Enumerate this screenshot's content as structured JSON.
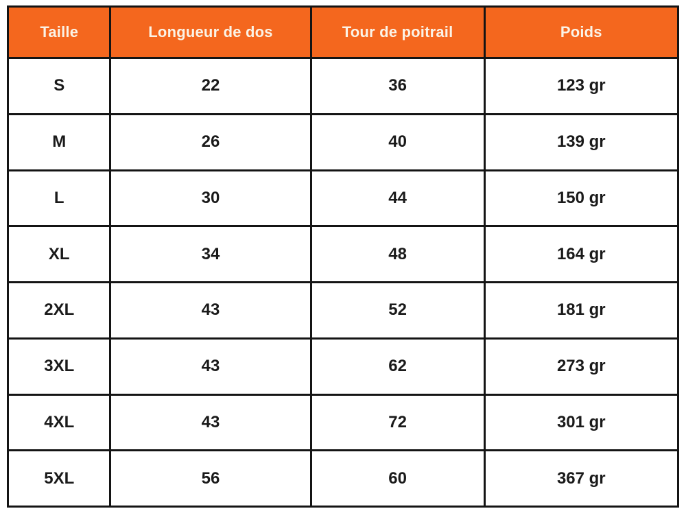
{
  "chart_data": {
    "type": "table",
    "title": "",
    "columns": [
      "Taille",
      "Longueur de dos",
      "Tour de poitrail",
      "Poids"
    ],
    "rows": [
      [
        "S",
        "22",
        "36",
        "123 gr"
      ],
      [
        "M",
        "26",
        "40",
        "139 gr"
      ],
      [
        "L",
        "30",
        "44",
        "150 gr"
      ],
      [
        "XL",
        "34",
        "48",
        "164 gr"
      ],
      [
        "2XL",
        "43",
        "52",
        "181 gr"
      ],
      [
        "3XL",
        "43",
        "62",
        "273 gr"
      ],
      [
        "4XL",
        "43",
        "72",
        "301 gr"
      ],
      [
        "5XL",
        "56",
        "60",
        "367 gr"
      ]
    ]
  },
  "colors": {
    "header_background": "#F4671E",
    "header_text": "#FBF3E6",
    "border": "#141414",
    "cell_text": "#1A1A1A",
    "page_background": "#FFFFFF"
  }
}
